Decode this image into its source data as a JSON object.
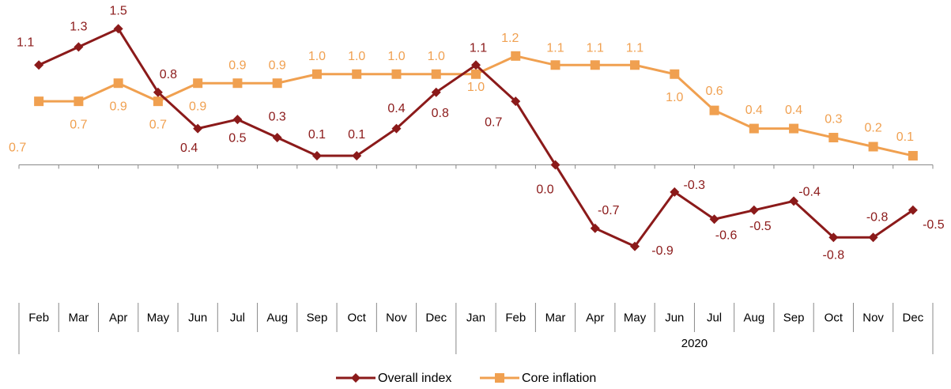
{
  "chart_data": {
    "type": "line",
    "categories": [
      "Feb",
      "Mar",
      "Apr",
      "May",
      "Jun",
      "Jul",
      "Aug",
      "Sep",
      "Oct",
      "Nov",
      "Dec",
      "Jan",
      "Feb",
      "Mar",
      "Apr",
      "May",
      "Jun",
      "Jul",
      "Aug",
      "Sep",
      "Oct",
      "Nov",
      "Dec"
    ],
    "x_groups": [
      {
        "label": "2020",
        "start": 11,
        "end": 22
      }
    ],
    "ylim": [
      -1.4,
      1.8
    ],
    "series": [
      {
        "name": "Overall index",
        "color": "#8b1a1a",
        "marker": "diamond",
        "values": [
          1.1,
          1.3,
          1.5,
          0.8,
          0.4,
          0.5,
          0.3,
          0.1,
          0.1,
          0.4,
          0.8,
          1.1,
          0.7,
          0.0,
          -0.7,
          -0.9,
          -0.3,
          -0.6,
          -0.5,
          -0.4,
          -0.8,
          -0.8,
          -0.5
        ],
        "value_labels": [
          "1.1",
          "1.3",
          "1.5",
          "0.8",
          "0.4",
          "0.5",
          "0.3",
          "0.1",
          "0.1",
          "0.4",
          "0.8",
          "1.1",
          "0.7",
          "0.0",
          "-0.7",
          "-0.9",
          "-0.3",
          "-0.6",
          "-0.5",
          "-0.4",
          "-0.8",
          "-0.8",
          "-0.5"
        ]
      },
      {
        "name": "Core inflation",
        "color": "#f0a050",
        "marker": "square",
        "values": [
          0.7,
          0.7,
          0.9,
          0.7,
          0.9,
          0.9,
          0.9,
          1.0,
          1.0,
          1.0,
          1.0,
          1.0,
          1.2,
          1.1,
          1.1,
          1.1,
          1.0,
          0.6,
          0.4,
          0.4,
          0.3,
          0.2,
          0.1
        ],
        "value_labels": [
          "0.7",
          "0.7",
          "0.9",
          "0.7",
          "0.9",
          "0.9",
          "0.9",
          "1.0",
          "1.0",
          "1.0",
          "1.0",
          "1.0",
          "1.2",
          "1.1",
          "1.1",
          "1.1",
          "1.0",
          "0.6",
          "0.4",
          "0.4",
          "0.3",
          "0.2",
          "0.1"
        ]
      }
    ]
  }
}
